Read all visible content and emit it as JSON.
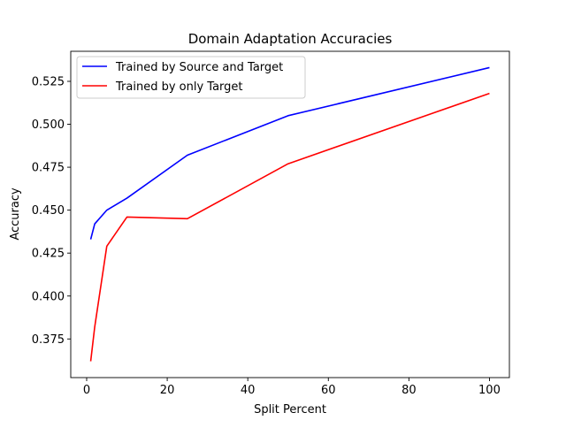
{
  "chart_data": {
    "type": "line",
    "title": "Domain Adaptation Accuracies",
    "xlabel": "Split Percent",
    "ylabel": "Accuracy",
    "xlim": [
      -3.95,
      104.95
    ],
    "ylim": [
      0.3525,
      0.5425
    ],
    "xticks": [
      0,
      20,
      40,
      60,
      80,
      100
    ],
    "xtick_labels": [
      "0",
      "20",
      "40",
      "60",
      "80",
      "100"
    ],
    "yticks": [
      0.375,
      0.4,
      0.425,
      0.45,
      0.475,
      0.5,
      0.525
    ],
    "ytick_labels": [
      "0.375",
      "0.400",
      "0.425",
      "0.450",
      "0.475",
      "0.500",
      "0.525"
    ],
    "grid": false,
    "legend_position": "top-left",
    "series": [
      {
        "name": "Trained by Source and Target",
        "color": "#0000ff",
        "x": [
          1,
          2,
          5,
          10,
          25,
          50,
          100
        ],
        "y": [
          0.433,
          0.442,
          0.45,
          0.457,
          0.482,
          0.505,
          0.533
        ]
      },
      {
        "name": "Trained by only Target",
        "color": "#ff0000",
        "x": [
          1,
          2,
          5,
          10,
          25,
          50,
          100
        ],
        "y": [
          0.362,
          0.382,
          0.429,
          0.446,
          0.445,
          0.477,
          0.518
        ]
      }
    ]
  }
}
